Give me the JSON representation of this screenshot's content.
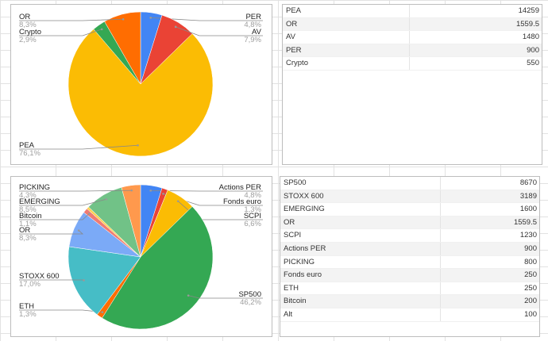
{
  "chart_data": [
    {
      "type": "pie",
      "title": "",
      "slices": [
        {
          "label": "PER",
          "value": 900,
          "pct": "4,8%",
          "color": "#4285f4"
        },
        {
          "label": "AV",
          "value": 1480,
          "pct": "7,9%",
          "color": "#ea4335"
        },
        {
          "label": "PEA",
          "value": 14259,
          "pct": "76,1%",
          "color": "#fbbc04"
        },
        {
          "label": "Crypto",
          "value": 550,
          "pct": "2,9%",
          "color": "#34a853"
        },
        {
          "label": "OR",
          "value": 1559.5,
          "pct": "8,3%",
          "color": "#ff6d01"
        }
      ]
    },
    {
      "type": "pie",
      "title": "",
      "slices": [
        {
          "label": "Actions PER",
          "value": 900,
          "pct": "4,8%",
          "color": "#4285f4"
        },
        {
          "label": "Fonds euro",
          "value": 250,
          "pct": "1,3%",
          "color": "#ea4335"
        },
        {
          "label": "SCPI",
          "value": 1230,
          "pct": "6,6%",
          "color": "#fbbc04"
        },
        {
          "label": "SP500",
          "value": 8670,
          "pct": "46,2%",
          "color": "#34a853"
        },
        {
          "label": "ETH",
          "value": 250,
          "pct": "1,3%",
          "color": "#ff6d01"
        },
        {
          "label": "STOXX 600",
          "value": 3189,
          "pct": "17,0%",
          "color": "#46bdc6"
        },
        {
          "label": "OR",
          "value": 1559.5,
          "pct": "8,3%",
          "color": "#7baaf7"
        },
        {
          "label": "Bitcoin",
          "value": 200,
          "pct": "1,1%",
          "color": "#f07b72"
        },
        {
          "label": "Alt",
          "value": 100,
          "pct": "",
          "color": "#fcd04f"
        },
        {
          "label": "EMERGING",
          "value": 1600,
          "pct": "8,5%",
          "color": "#71c287"
        },
        {
          "label": "PICKING",
          "value": 800,
          "pct": "4,3%",
          "color": "#ff994d"
        }
      ]
    }
  ],
  "tables": [
    {
      "rows": [
        [
          "PEA",
          "14259"
        ],
        [
          "OR",
          "1559.5"
        ],
        [
          "AV",
          "1480"
        ],
        [
          "PER",
          "900"
        ],
        [
          "Crypto",
          "550"
        ]
      ]
    },
    {
      "rows": [
        [
          "SP500",
          "8670"
        ],
        [
          "STOXX 600",
          "3189"
        ],
        [
          "EMERGING",
          "1600"
        ],
        [
          "OR",
          "1559.5"
        ],
        [
          "SCPI",
          "1230"
        ],
        [
          "Actions PER",
          "900"
        ],
        [
          "PICKING",
          "800"
        ],
        [
          "Fonds euro",
          "250"
        ],
        [
          "ETH",
          "250"
        ],
        [
          "Bitcoin",
          "200"
        ],
        [
          "Alt",
          "100"
        ]
      ]
    }
  ]
}
